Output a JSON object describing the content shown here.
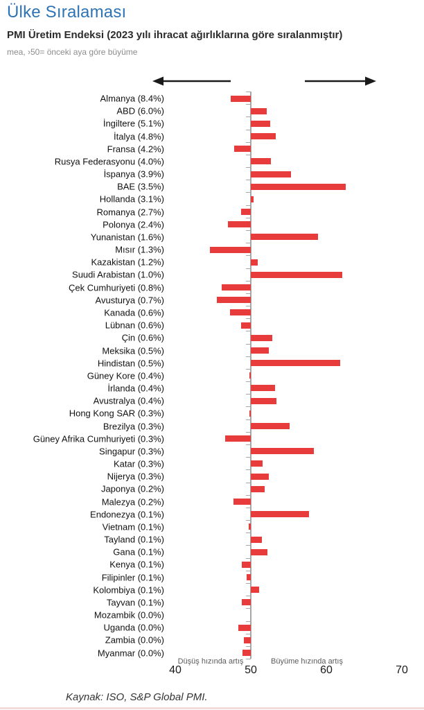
{
  "header": {
    "title": "Ülke Sıralaması",
    "subtitle": "PMI Üretim Endeksi (2023 yılı ihracat ağırlıklarına göre sıralanmıştır)",
    "caption": "mea, ›50= önceki aya göre büyüme"
  },
  "icons": {
    "left_arrow": "arrow-left",
    "right_arrow": "arrow-right"
  },
  "colors": {
    "title_blue": "#2E74B5",
    "bar_red": "#E83C3C",
    "axis_gray": "#A6A6A6"
  },
  "chart_data": {
    "type": "bar",
    "orientation": "horizontal",
    "title": "PMI Üretim Endeksi (2023 yılı ihracat ağırlıklarına göre sıralanmıştır)",
    "xlabel": "",
    "ylabel": "",
    "xlim": [
      40,
      70
    ],
    "baseline": 50,
    "x_ticks": [
      "40",
      "50",
      "60",
      "70"
    ],
    "grid": false,
    "legend": "none",
    "left_annotation": "Düşüş hızında artış",
    "right_annotation": "Büyüme hızında artış",
    "countries": [
      {
        "label": "Almanya (8.4%)",
        "value": 47.3
      },
      {
        "label": "ABD (6.0%)",
        "value": 52.1
      },
      {
        "label": "İngiltere (5.1%)",
        "value": 52.6
      },
      {
        "label": "İtalya (4.8%)",
        "value": 53.3
      },
      {
        "label": "Fransa (4.2%)",
        "value": 47.8
      },
      {
        "label": "Rusya Federasyonu (4.0%)",
        "value": 52.7
      },
      {
        "label": "İspanya (3.9%)",
        "value": 55.3
      },
      {
        "label": "BAE (3.5%)",
        "value": 62.6
      },
      {
        "label": "Hollanda (3.1%)",
        "value": 50.4
      },
      {
        "label": "Romanya (2.7%)",
        "value": 48.7
      },
      {
        "label": "Polonya (2.4%)",
        "value": 47.0
      },
      {
        "label": "Yunanistan (1.6%)",
        "value": 58.9
      },
      {
        "label": "Mısır (1.3%)",
        "value": 44.6
      },
      {
        "label": "Kazakistan (1.2%)",
        "value": 50.9
      },
      {
        "label": "Suudi Arabistan (1.0%)",
        "value": 62.1
      },
      {
        "label": "Çek Cumhuriyeti (0.8%)",
        "value": 46.1
      },
      {
        "label": "Avusturya (0.7%)",
        "value": 45.5
      },
      {
        "label": "Kanada (0.6%)",
        "value": 47.2
      },
      {
        "label": "Lübnan (0.6%)",
        "value": 48.7
      },
      {
        "label": "Çin (0.6%)",
        "value": 52.8
      },
      {
        "label": "Meksika (0.5%)",
        "value": 52.4
      },
      {
        "label": "Hindistan (0.5%)",
        "value": 61.8
      },
      {
        "label": "Güney Kore (0.4%)",
        "value": 49.8
      },
      {
        "label": "İrlanda (0.4%)",
        "value": 53.2
      },
      {
        "label": "Avustralya (0.4%)",
        "value": 53.4
      },
      {
        "label": "Hong Kong SAR (0.3%)",
        "value": 49.8
      },
      {
        "label": "Brezilya (0.3%)",
        "value": 55.1
      },
      {
        "label": "Güney Afrika Cumhuriyeti (0.3%)",
        "value": 46.6
      },
      {
        "label": "Singapur (0.3%)",
        "value": 58.3
      },
      {
        "label": "Katar (0.3%)",
        "value": 51.6
      },
      {
        "label": "Nijerya (0.3%)",
        "value": 52.4
      },
      {
        "label": "Japonya (0.2%)",
        "value": 51.8
      },
      {
        "label": "Malezya (0.2%)",
        "value": 47.7
      },
      {
        "label": "Endonezya (0.1%)",
        "value": 57.7
      },
      {
        "label": "Vietnam (0.1%)",
        "value": 49.7
      },
      {
        "label": "Tayland (0.1%)",
        "value": 51.5
      },
      {
        "label": "Gana (0.1%)",
        "value": 52.2
      },
      {
        "label": "Kenya (0.1%)",
        "value": 48.8
      },
      {
        "label": "Filipinler (0.1%)",
        "value": 49.4
      },
      {
        "label": "Kolombiya (0.1%)",
        "value": 51.1
      },
      {
        "label": "Tayvan (0.1%)",
        "value": 48.8
      },
      {
        "label": "Mozambik (0.0%)",
        "value": 50.0
      },
      {
        "label": "Uganda (0.0%)",
        "value": 48.3
      },
      {
        "label": "Zambia (0.0%)",
        "value": 49.1
      },
      {
        "label": "Myanmar (0.0%)",
        "value": 48.9
      }
    ]
  },
  "footer": {
    "source": "Kaynak: ISO, S&P Global PMI."
  }
}
